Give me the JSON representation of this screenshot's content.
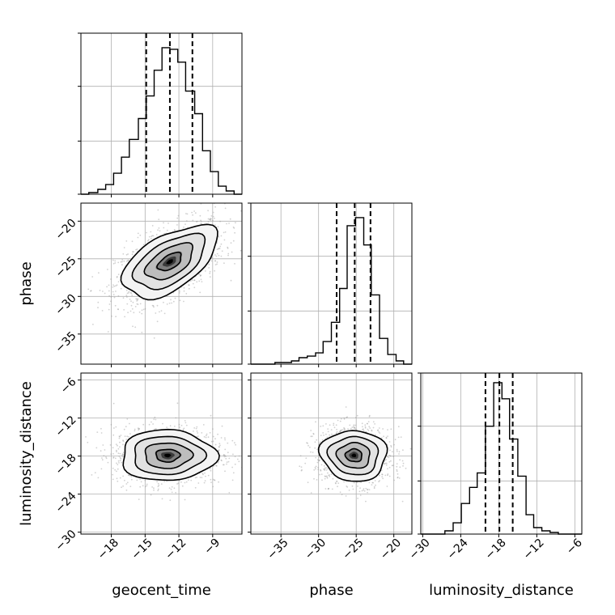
{
  "chart_data": {
    "type": "corner",
    "title": "",
    "parameters": [
      "geocent_time",
      "phase",
      "luminosity_distance"
    ],
    "axis_labels": {
      "x": [
        "geocent_time",
        "phase",
        "luminosity_distance"
      ],
      "y": [
        "",
        "phase",
        "luminosity_distance"
      ]
    },
    "ranges": {
      "geocent_time": [
        -20.7,
        -6.4
      ],
      "phase": [
        -39.0,
        -17.6
      ],
      "luminosity_distance": [
        -30.3,
        -4.9
      ]
    },
    "ticks": {
      "geocent_time": [
        -18,
        -15,
        -12,
        -9
      ],
      "phase": [
        -35,
        -30,
        -25,
        -20
      ],
      "luminosity_distance": [
        -30,
        -24,
        -18,
        -12,
        -6
      ]
    },
    "tick_labels": {
      "geocent_time": [
        "−18",
        "−15",
        "−12",
        "−9"
      ],
      "phase": [
        "−35",
        "−30",
        "−25",
        "−20"
      ],
      "luminosity_distance": [
        "−30",
        "−24",
        "−18",
        "−12",
        "−6"
      ]
    },
    "quantiles": {
      "geocent_time": [
        -14.9,
        -12.8,
        -10.8
      ],
      "phase": [
        -27.6,
        -25.2,
        -23.1
      ],
      "luminosity_distance": [
        -20.1,
        -17.9,
        -15.8
      ]
    },
    "histograms": {
      "geocent_time": {
        "edges": [
          -20.7,
          -20.0,
          -19.2,
          -18.5,
          -17.8,
          -17.1,
          -16.4,
          -15.6,
          -14.9,
          -14.2,
          -13.5,
          -12.8,
          -12.1,
          -11.4,
          -10.6,
          -9.9,
          -9.2,
          -8.5,
          -7.8,
          -7.1,
          -6.4
        ],
        "counts": [
          0.0,
          0.01,
          0.03,
          0.06,
          0.13,
          0.23,
          0.34,
          0.47,
          0.61,
          0.77,
          0.91,
          0.9,
          0.82,
          0.64,
          0.5,
          0.27,
          0.14,
          0.05,
          0.02,
          0.0
        ]
      },
      "phase": {
        "edges": [
          -39.0,
          -37.9,
          -36.9,
          -35.8,
          -34.7,
          -33.6,
          -32.6,
          -31.5,
          -30.4,
          -29.4,
          -28.3,
          -27.2,
          -26.2,
          -25.1,
          -24.0,
          -23.0,
          -21.9,
          -20.8,
          -19.7,
          -18.7,
          -17.6
        ],
        "counts": [
          0.0,
          0.0,
          0.0,
          0.01,
          0.01,
          0.02,
          0.04,
          0.05,
          0.07,
          0.14,
          0.26,
          0.47,
          0.86,
          0.91,
          0.74,
          0.43,
          0.16,
          0.06,
          0.02,
          0.0
        ]
      },
      "luminosity_distance": {
        "edges": [
          -30.3,
          -29.0,
          -27.8,
          -26.5,
          -25.2,
          -23.9,
          -22.6,
          -21.4,
          -20.1,
          -18.8,
          -17.5,
          -16.3,
          -15.0,
          -13.7,
          -12.5,
          -11.2,
          -9.9,
          -8.6,
          -7.4,
          -6.1,
          -4.9
        ],
        "counts": [
          0.0,
          0.0,
          0.0,
          0.02,
          0.07,
          0.19,
          0.29,
          0.38,
          0.67,
          0.94,
          0.84,
          0.59,
          0.36,
          0.12,
          0.04,
          0.02,
          0.01,
          0.0,
          0.0,
          0.0
        ]
      }
    },
    "joint_2d": [
      {
        "x": "geocent_time",
        "y": "phase",
        "mean": [
          -12.8,
          -25.4
        ],
        "sd": [
          2.1,
          2.4
        ],
        "corr": 0.55,
        "contour_levels": [
          0.5,
          1.0,
          1.5,
          2.0
        ]
      },
      {
        "x": "geocent_time",
        "y": "luminosity_distance",
        "mean": [
          -13.0,
          -17.9
        ],
        "sd": [
          2.1,
          2.0
        ],
        "corr": 0.0,
        "contour_levels": [
          0.5,
          1.0,
          1.5,
          2.0
        ]
      },
      {
        "x": "phase",
        "y": "luminosity_distance",
        "mean": [
          -25.3,
          -17.9
        ],
        "sd": [
          2.2,
          2.0
        ],
        "corr": -0.05,
        "contour_levels": [
          0.5,
          1.0,
          1.5,
          2.0
        ]
      }
    ],
    "colors": {
      "line": "#000000",
      "grid": "#b0b0b0",
      "points": "#9a9a9a"
    },
    "grid": true,
    "legend": "none"
  }
}
